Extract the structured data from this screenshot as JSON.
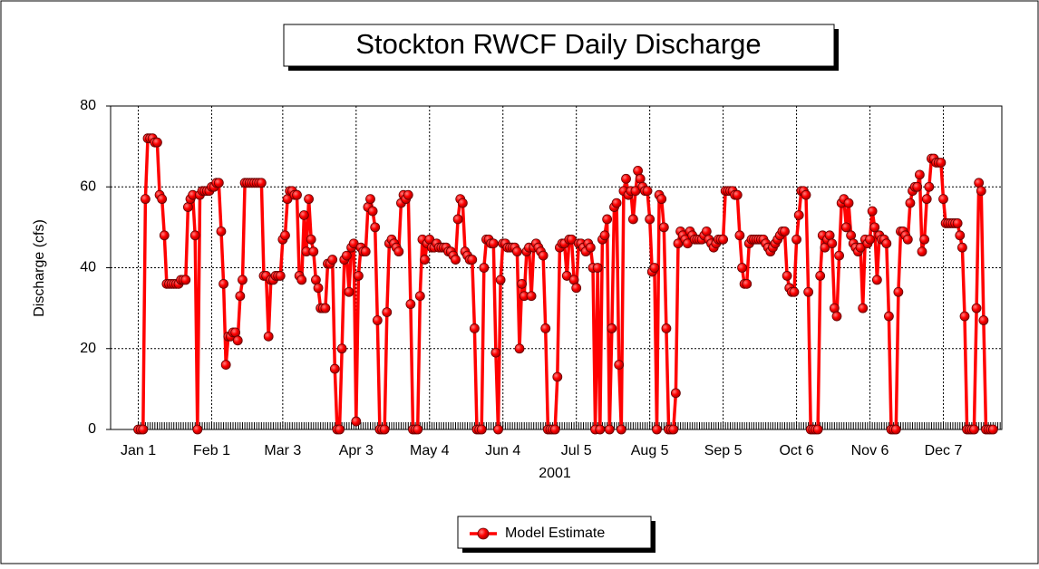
{
  "chart_data": {
    "type": "line",
    "title": "Stockton RWCF Daily Discharge",
    "x_label": "2001",
    "y_label": "Discharge (cfs)",
    "categories": [
      "Jan 1",
      null,
      null,
      null,
      null,
      null,
      null,
      null,
      null,
      null,
      null,
      null,
      null,
      null,
      null,
      null,
      null,
      null,
      null,
      null,
      null,
      null,
      null,
      null,
      null,
      null,
      null,
      null,
      null,
      null,
      null,
      "Feb 1",
      null,
      null,
      null,
      null,
      null,
      null,
      null,
      null,
      null,
      null,
      null,
      null,
      null,
      null,
      null,
      null,
      null,
      null,
      null,
      null,
      null,
      null,
      null,
      null,
      null,
      null,
      null,
      null,
      null,
      "Mar 3",
      null,
      null,
      null,
      null,
      null,
      null,
      null,
      null,
      null,
      null,
      null,
      null,
      null,
      null,
      null,
      null,
      null,
      null,
      null,
      null,
      null,
      null,
      null,
      null,
      null,
      null,
      null,
      null,
      null,
      null,
      "Apr 3",
      null,
      null,
      null,
      null,
      null,
      null,
      null,
      null,
      null,
      null,
      null,
      null,
      null,
      null,
      null,
      null,
      null,
      null,
      null,
      null,
      null,
      null,
      null,
      null,
      null,
      null,
      null,
      null,
      null,
      null,
      "May 4",
      null,
      null,
      null,
      null,
      null,
      null,
      null,
      null,
      null,
      null,
      null,
      null,
      null,
      null,
      null,
      null,
      null,
      null,
      null,
      null,
      null,
      null,
      null,
      null,
      null,
      null,
      null,
      null,
      null,
      null,
      "Jun 4",
      null,
      null,
      null,
      null,
      null,
      null,
      null,
      null,
      null,
      null,
      null,
      null,
      null,
      null,
      null,
      null,
      null,
      null,
      null,
      null,
      null,
      null,
      null,
      null,
      null,
      null,
      null,
      null,
      null,
      null,
      "Jul 5",
      null,
      null,
      null,
      null,
      null,
      null,
      null,
      null,
      null,
      null,
      null,
      null,
      null,
      null,
      null,
      null,
      null,
      null,
      null,
      null,
      null,
      null,
      null,
      null,
      null,
      null,
      null,
      null,
      null,
      null,
      "Aug 5",
      null,
      null,
      null,
      null,
      null,
      null,
      null,
      null,
      null,
      null,
      null,
      null,
      null,
      null,
      null,
      null,
      null,
      null,
      null,
      null,
      null,
      null,
      null,
      null,
      null,
      null,
      null,
      null,
      null,
      null,
      "Sep 5",
      null,
      null,
      null,
      null,
      null,
      null,
      null,
      null,
      null,
      null,
      null,
      null,
      null,
      null,
      null,
      null,
      null,
      null,
      null,
      null,
      null,
      null,
      null,
      null,
      null,
      null,
      null,
      null,
      null,
      null,
      "Oct 6",
      null,
      null,
      null,
      null,
      null,
      null,
      null,
      null,
      null,
      null,
      null,
      null,
      null,
      null,
      null,
      null,
      null,
      null,
      null,
      null,
      null,
      null,
      null,
      null,
      null,
      null,
      null,
      null,
      null,
      null,
      "Nov 6",
      null,
      null,
      null,
      null,
      null,
      null,
      null,
      null,
      null,
      null,
      null,
      null,
      null,
      null,
      null,
      null,
      null,
      null,
      null,
      null,
      null,
      null,
      null,
      null,
      null,
      null,
      null,
      null,
      null,
      null,
      "Dec 7",
      null,
      null,
      null,
      null,
      null,
      null,
      null,
      null,
      null,
      null,
      null,
      null,
      null,
      null,
      null,
      null,
      null,
      null,
      null,
      null,
      null,
      null,
      null,
      null
    ],
    "series": [
      {
        "name": "Model Estimate",
        "color": "#ff0000",
        "marker_color": "#ff0000",
        "values": [
          0,
          0,
          0,
          57,
          72,
          72,
          72,
          71,
          71,
          58,
          57,
          48,
          36,
          36,
          36,
          36,
          36,
          36,
          37,
          37,
          37,
          55,
          57,
          58,
          48,
          0,
          58,
          59,
          59,
          59,
          59,
          60,
          60,
          61,
          61,
          49,
          36,
          16,
          23,
          23,
          24,
          24,
          22,
          33,
          37,
          61,
          61,
          61,
          61,
          61,
          61,
          61,
          61,
          38,
          38,
          23,
          37,
          37,
          38,
          38,
          38,
          47,
          48,
          57,
          59,
          59,
          58,
          58,
          38,
          37,
          53,
          44,
          57,
          47,
          44,
          37,
          35,
          30,
          30,
          30,
          41,
          41,
          42,
          15,
          0,
          0,
          20,
          42,
          43,
          34,
          45,
          46,
          2,
          38,
          45,
          44,
          44,
          55,
          57,
          54,
          50,
          27,
          0,
          0,
          0,
          29,
          46,
          47,
          46,
          45,
          44,
          56,
          58,
          57,
          58,
          31,
          0,
          0,
          0,
          33,
          47,
          42,
          46,
          47,
          45,
          45,
          46,
          45,
          45,
          45,
          45,
          44,
          44,
          43,
          42,
          52,
          57,
          56,
          44,
          43,
          42,
          42,
          25,
          0,
          0,
          0,
          40,
          47,
          47,
          46,
          46,
          19,
          0,
          37,
          46,
          46,
          45,
          45,
          45,
          45,
          44,
          20,
          36,
          33,
          44,
          45,
          33,
          45,
          46,
          45,
          44,
          43,
          25,
          0,
          0,
          0,
          0,
          13,
          45,
          46,
          46,
          38,
          47,
          47,
          37,
          35,
          46,
          46,
          45,
          44,
          46,
          45,
          40,
          0,
          40,
          0,
          47,
          48,
          52,
          0,
          25,
          55,
          56,
          16,
          0,
          59,
          62,
          58,
          59,
          52,
          59,
          64,
          62,
          60,
          59,
          59,
          52,
          39,
          40,
          0,
          58,
          57,
          50,
          25,
          0,
          0,
          0,
          9,
          46,
          49,
          48,
          47,
          46,
          49,
          48,
          47,
          47,
          47,
          47,
          48,
          49,
          47,
          46,
          45,
          46,
          47,
          47,
          47,
          59,
          59,
          59,
          59,
          58,
          58,
          48,
          40,
          36,
          36,
          46,
          47,
          47,
          47,
          47,
          47,
          47,
          46,
          45,
          44,
          45,
          46,
          47,
          48,
          49,
          49,
          38,
          35,
          34,
          34,
          47,
          53,
          59,
          59,
          58,
          34,
          0,
          0,
          0,
          0,
          38,
          48,
          45,
          47,
          48,
          46,
          30,
          28,
          43,
          56,
          57,
          50,
          56,
          48,
          46,
          45,
          44,
          45,
          30,
          47,
          46,
          47,
          54,
          50,
          37,
          48,
          47,
          47,
          46,
          28,
          0,
          0,
          0,
          34,
          49,
          49,
          48,
          47,
          56,
          59,
          60,
          60,
          63,
          44,
          47,
          57,
          60,
          67,
          67,
          66,
          66,
          66,
          57,
          51,
          51,
          51,
          51,
          51,
          51,
          48,
          45,
          28,
          0,
          0,
          0,
          0,
          30,
          61,
          59,
          27,
          0,
          0,
          0,
          0,
          null,
          null,
          null
        ]
      }
    ],
    "ylim": [
      0,
      80
    ],
    "yticks": [
      0,
      20,
      40,
      60,
      80
    ],
    "grid": true,
    "legend": "bottom"
  }
}
